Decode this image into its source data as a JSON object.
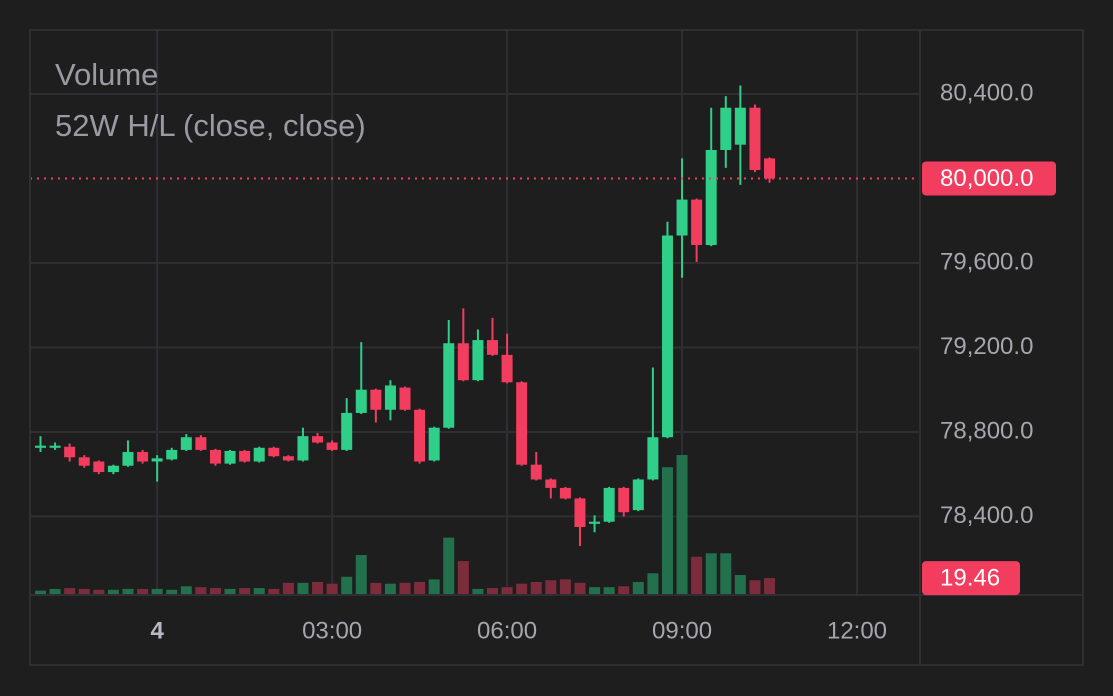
{
  "chart_data": {
    "type": "candlestick",
    "legend": [
      "Volume",
      "52W H/L (close, close)"
    ],
    "x": [
      -2,
      -1.75,
      -1.5,
      -1.25,
      -1,
      -0.75,
      -0.5,
      -0.25,
      0,
      0.25,
      0.5,
      0.75,
      1,
      1.25,
      1.5,
      1.75,
      2,
      2.25,
      2.5,
      2.75,
      3,
      3.25,
      3.5,
      3.75,
      4,
      4.25,
      4.5,
      4.75,
      5,
      5.25,
      5.5,
      5.75,
      6,
      6.25,
      6.5,
      6.75,
      7,
      7.25,
      7.5,
      7.75,
      8,
      8.25,
      8.5,
      8.75,
      9,
      9.25,
      9.5,
      9.75,
      10,
      10.25,
      10.5
    ],
    "open": [
      78725,
      78725,
      78730,
      78680,
      78660,
      78610,
      78640,
      78705,
      78660,
      78670,
      78715,
      78775,
      78715,
      78650,
      78710,
      78660,
      78725,
      78685,
      78665,
      78780,
      78750,
      78715,
      78890,
      79000,
      78905,
      79010,
      78905,
      78665,
      78820,
      79220,
      79045,
      79235,
      79165,
      79035,
      78645,
      78575,
      78535,
      78485,
      78365,
      78375,
      78535,
      78430,
      78575,
      78775,
      79730,
      79900,
      79685,
      80135,
      80160,
      80335,
      80095
    ],
    "high": [
      78780,
      78750,
      78745,
      78690,
      78665,
      78645,
      78760,
      78715,
      78690,
      78725,
      78790,
      78785,
      78720,
      78715,
      78715,
      78730,
      78730,
      78690,
      78820,
      78795,
      78760,
      78960,
      79225,
      79005,
      79045,
      79015,
      78910,
      78825,
      79330,
      79385,
      79285,
      79340,
      79265,
      79040,
      78705,
      78580,
      78540,
      78490,
      78405,
      78540,
      78540,
      78580,
      79105,
      79795,
      80095,
      79905,
      80335,
      80390,
      80440,
      80350,
      80100
    ],
    "low": [
      78705,
      78715,
      78660,
      78630,
      78600,
      78600,
      78635,
      78650,
      78565,
      78665,
      78710,
      78710,
      78640,
      78645,
      78655,
      78655,
      78680,
      78660,
      78660,
      78745,
      78710,
      78710,
      78885,
      78845,
      78855,
      78900,
      78650,
      78660,
      78815,
      79040,
      79040,
      79160,
      79030,
      78640,
      78570,
      78485,
      78480,
      78260,
      78325,
      78370,
      78400,
      78425,
      78570,
      78770,
      79530,
      79605,
      79680,
      80050,
      79970,
      80030,
      79980
    ],
    "close": [
      78735,
      78735,
      78680,
      78640,
      78610,
      78640,
      78705,
      78660,
      78675,
      78715,
      78775,
      78715,
      78650,
      78710,
      78660,
      78725,
      78685,
      78665,
      78780,
      78750,
      78715,
      78890,
      79000,
      78905,
      79020,
      78905,
      78660,
      78820,
      79220,
      79045,
      79235,
      79165,
      79035,
      78645,
      78575,
      78535,
      78485,
      78350,
      78375,
      78535,
      78420,
      78575,
      78775,
      79730,
      79900,
      79685,
      80135,
      80335,
      80335,
      80040,
      80000
    ],
    "close_label": "80,000.0",
    "up_color": "#2fcf8a",
    "down_color": "#f23d5f",
    "volume": {
      "name": "Volume",
      "values": [
        5,
        7,
        8,
        7,
        6,
        6,
        7,
        7,
        7,
        6,
        10,
        9,
        8,
        7,
        8,
        8,
        7,
        14,
        14,
        15,
        13,
        21,
        46,
        14,
        13,
        14,
        15,
        18,
        66,
        39,
        7,
        8,
        9,
        13,
        15,
        17,
        18,
        14,
        9,
        9,
        10,
        15,
        25,
        147,
        161,
        44,
        48,
        48,
        23,
        17,
        19.46
      ],
      "ylim": [
        0,
        650
      ],
      "up_color": "#23704d",
      "down_color": "#7d2c3b"
    },
    "xlim": [
      -2.18,
      13.08
    ],
    "xticks": [
      {
        "value": 0,
        "label": "4"
      },
      {
        "value": 3,
        "label": "03:00"
      },
      {
        "value": 6,
        "label": "06:00"
      },
      {
        "value": 9,
        "label": "09:00"
      },
      {
        "value": 12,
        "label": "12:00"
      }
    ],
    "ylim": [
      78028,
      80703
    ],
    "yticks": [
      {
        "value": 78400,
        "label": "78,400.0"
      },
      {
        "value": 78800,
        "label": "78,800.0"
      },
      {
        "value": 79200,
        "label": "79,200.0"
      },
      {
        "value": 79600,
        "label": "79,600.0"
      },
      {
        "value": 80400,
        "label": "80,400.0"
      }
    ],
    "grid": true
  }
}
